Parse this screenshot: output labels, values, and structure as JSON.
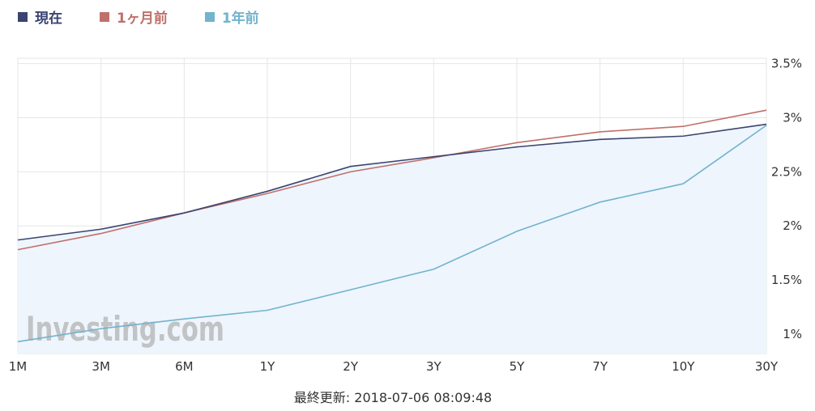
{
  "legend": [
    {
      "label": "現在",
      "color": "#3b4470"
    },
    {
      "label": "1ヶ月前",
      "color": "#c0706a"
    },
    {
      "label": "1年前",
      "color": "#72b3cd"
    }
  ],
  "watermark": "Investing.com",
  "footer": {
    "label": "最終更新:",
    "value": "2018-07-06 08:09:48"
  },
  "chart_data": {
    "type": "line",
    "categories": [
      "1M",
      "3M",
      "6M",
      "1Y",
      "2Y",
      "3Y",
      "5Y",
      "7Y",
      "10Y",
      "30Y"
    ],
    "ylim": [
      0.82,
      3.55
    ],
    "yticks": [
      1,
      1.5,
      2,
      2.5,
      3,
      3.5
    ],
    "ytick_labels": [
      "1%",
      "1.5%",
      "2%",
      "2.5%",
      "3%",
      "3.5%"
    ],
    "grid": true,
    "axis_side": "right",
    "series": [
      {
        "name": "現在",
        "color": "#3b4470",
        "filled": true,
        "values": [
          1.87,
          1.97,
          2.12,
          2.32,
          2.55,
          2.64,
          2.73,
          2.8,
          2.83,
          2.94
        ]
      },
      {
        "name": "1ヶ月前",
        "color": "#c0706a",
        "filled": false,
        "values": [
          1.78,
          1.93,
          2.12,
          2.3,
          2.5,
          2.63,
          2.77,
          2.87,
          2.92,
          3.07
        ]
      },
      {
        "name": "1年前",
        "color": "#72b3cd",
        "filled": false,
        "values": [
          0.93,
          1.05,
          1.14,
          1.22,
          1.41,
          1.6,
          1.95,
          2.22,
          2.39,
          2.93
        ]
      }
    ]
  }
}
